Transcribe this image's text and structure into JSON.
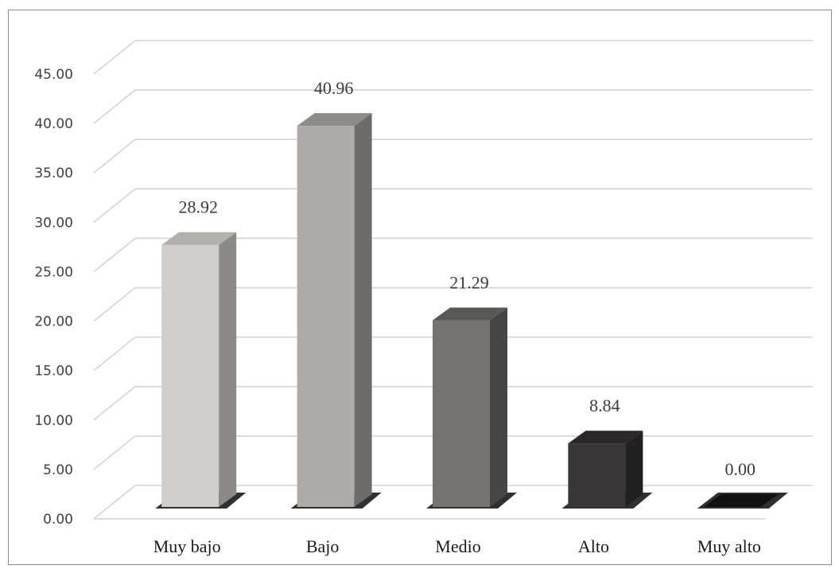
{
  "chart_data": {
    "type": "bar",
    "style": "3d-column",
    "categories": [
      "Muy bajo",
      "Bajo",
      "Medio",
      "Alto",
      "Muy alto"
    ],
    "values": [
      28.92,
      40.96,
      21.29,
      8.84,
      0.0
    ],
    "data_labels": [
      "28.92",
      "40.96",
      "21.29",
      "8.84",
      "0.00"
    ],
    "ylim": [
      0,
      45
    ],
    "yticks": [
      0,
      5,
      10,
      15,
      20,
      25,
      30,
      35,
      40,
      45
    ],
    "ytick_labels": [
      "0.00",
      "5.00",
      "10.00",
      "15.00",
      "20.00",
      "25.00",
      "30.00",
      "35.00",
      "40.00",
      "45.00"
    ],
    "grid": true,
    "legend": "none",
    "title": "",
    "xlabel": "",
    "ylabel": "",
    "colors": {
      "front": [
        "#d0cecd",
        "#aeaba9",
        "#757270",
        "#383637",
        "#111111"
      ],
      "side": [
        "#8c8a89",
        "#6e6c6b",
        "#474545",
        "#222122",
        "#050505"
      ],
      "top": [
        "#b2b0af",
        "#8e8c8b",
        "#5a5857",
        "#2a2829",
        "#0a0a0a"
      ],
      "grid": "#d4d4d4",
      "frame": "#8c8c8c"
    }
  }
}
